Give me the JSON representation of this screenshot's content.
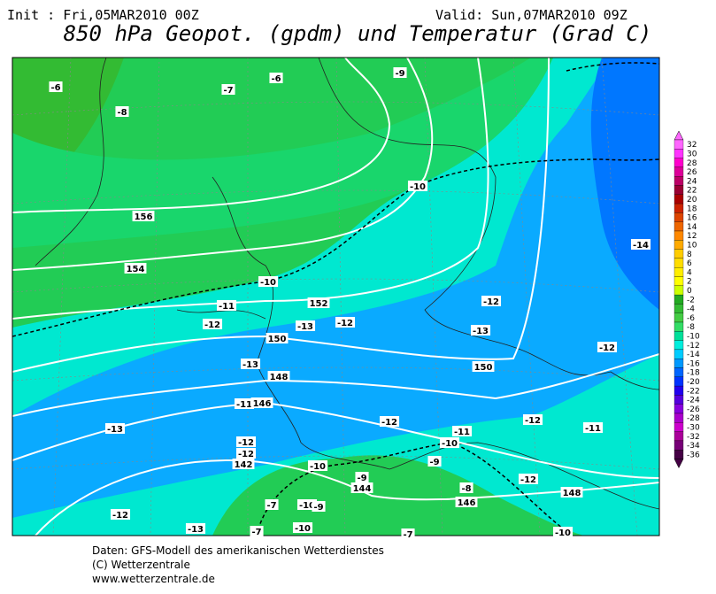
{
  "header": {
    "init": "Init : Fri,05MAR2010 00Z",
    "valid": "Valid: Sun,07MAR2010 09Z",
    "title": "850 hPa Geopot. (gpdm) und Temperatur (Grad C)"
  },
  "map": {
    "labels": [
      -6,
      -7,
      -6,
      -9,
      -8,
      -10,
      156,
      154,
      -10,
      -11,
      152,
      -12,
      -12,
      -13,
      -12,
      150,
      -13,
      -13,
      148,
      150,
      -12,
      -11,
      146,
      -13,
      -12,
      -12,
      -11,
      -11,
      -10,
      -12,
      -12,
      142,
      -10,
      -9,
      -9,
      144,
      -12,
      148,
      -8,
      146,
      -7,
      -10,
      -9,
      -12,
      -13,
      -7,
      -10,
      -7,
      -10,
      -14
    ]
  },
  "colorbar": {
    "values": [
      32,
      30,
      28,
      26,
      24,
      22,
      20,
      18,
      16,
      14,
      12,
      10,
      8,
      6,
      4,
      2,
      0,
      -2,
      -4,
      -6,
      -8,
      -10,
      -12,
      -14,
      -16,
      -18,
      -20,
      -22,
      -24,
      -26,
      -28,
      -30,
      -32,
      -34,
      -36
    ],
    "colors": [
      "#ff66ff",
      "#ff33ff",
      "#ff00cc",
      "#dd0099",
      "#bb0066",
      "#990033",
      "#aa0000",
      "#cc2200",
      "#dd4400",
      "#ee6600",
      "#ff8800",
      "#ffaa00",
      "#ffcc00",
      "#ffdd00",
      "#ffee00",
      "#ffff00",
      "#ccff00",
      "#22aa22",
      "#33bb33",
      "#44cc44",
      "#33dd66",
      "#00e09a",
      "#00eedd",
      "#00ccff",
      "#0099ff",
      "#0066ff",
      "#0033ff",
      "#2200ee",
      "#5500dd",
      "#8800dd",
      "#aa00cc",
      "#cc00cc",
      "#aa0099",
      "#770077",
      "#440044"
    ]
  },
  "footer": {
    "lines": [
      "Daten: GFS-Modell des amerikanischen Wetterdienstes",
      "(C) Wetterzentrale",
      "www.wetterzentrale.de"
    ]
  }
}
